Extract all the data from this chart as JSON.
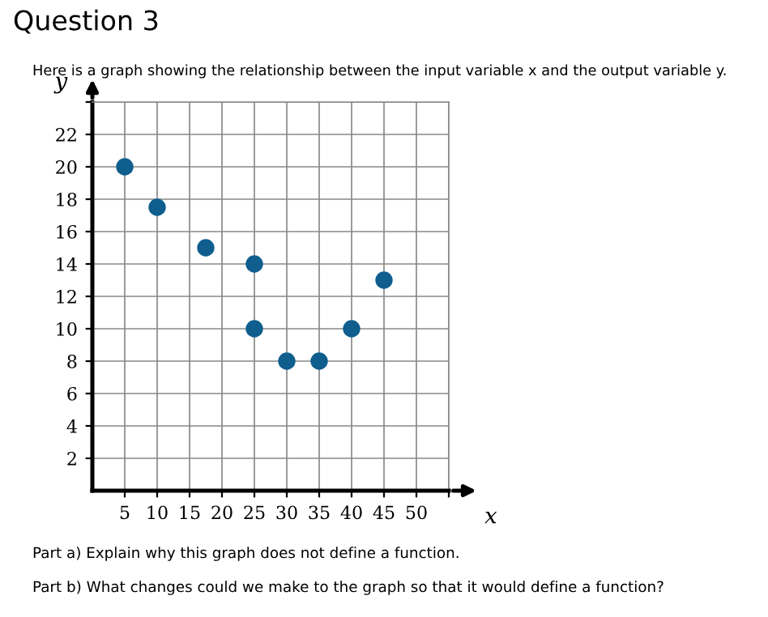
{
  "chart_data": {
    "type": "scatter",
    "title": "Question 3",
    "subtitle": "Here is a graph showing the relationship between the input variable x and the output variable y.",
    "xlabel": "x",
    "ylabel": "y",
    "x": [
      5,
      10,
      17.5,
      25,
      25,
      30,
      35,
      40,
      45
    ],
    "series": [
      {
        "color": "#0f5e8e",
        "values": [
          20,
          17.5,
          15,
          14,
          10,
          8,
          8,
          10,
          13
        ]
      }
    ],
    "marker": "circle",
    "xlim": [
      0,
      55
    ],
    "ylim": [
      0,
      24
    ],
    "xticks": [
      5,
      10,
      15,
      20,
      25,
      30,
      35,
      40,
      45,
      50,
      {
        "value": 55,
        "label": null
      }
    ],
    "yticks": [
      2,
      4,
      6,
      8,
      10,
      12,
      14,
      16,
      18,
      20,
      22,
      {
        "value": 24,
        "label": null
      }
    ],
    "grid": true,
    "annotations": [
      "Part a) Explain why this graph does not define a function.",
      "Part b) What changes could we make to the graph so that it would define a function?"
    ]
  }
}
